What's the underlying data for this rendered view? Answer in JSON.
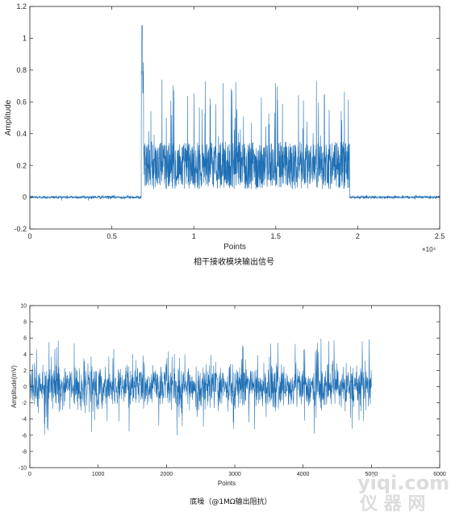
{
  "chart_data": [
    {
      "type": "line",
      "xlabel": "Points",
      "ylabel": "Amplitude",
      "x_exponent": "×10⁴",
      "caption": "相干接收模块输出信号",
      "xlim": [
        0,
        25000
      ],
      "ylim": [
        -0.2,
        1.2
      ],
      "xticks": [
        0,
        5000,
        10000,
        15000,
        20000,
        25000
      ],
      "xtick_labels": [
        "0",
        "0.5",
        "1",
        "1.5",
        "2",
        "2.5"
      ],
      "yticks": [
        -0.2,
        0,
        0.2,
        0.4,
        0.6,
        0.8,
        1,
        1.2
      ],
      "ytick_labels": [
        "-0.2",
        "0",
        "0.2",
        "0.4",
        "0.6",
        "0.8",
        "1",
        "1.2"
      ],
      "color": "#1f6fb4",
      "signal": {
        "baseline": 0.0,
        "baseline_noise": 0.01,
        "pulse_start": 6800,
        "pulse_end": 19500,
        "peak": 1.08,
        "peak_at": 6850,
        "typical_range": [
          0.05,
          0.45
        ],
        "spikes_to": 0.76
      }
    },
    {
      "type": "line",
      "xlabel": "Points",
      "ylabel": "Amplitude(mV)",
      "caption": "底噪（@1MΩ输出阻抗）",
      "xlim": [
        0,
        6000
      ],
      "ylim": [
        -10,
        10
      ],
      "xticks": [
        0,
        1000,
        2000,
        3000,
        4000,
        5000,
        6000
      ],
      "xtick_labels": [
        "0",
        "1000",
        "2000",
        "3000",
        "4000",
        "5000",
        "6000"
      ],
      "yticks": [
        -10,
        -8,
        -6,
        -4,
        -2,
        0,
        2,
        4,
        6,
        8,
        10
      ],
      "ytick_labels": [
        "-10",
        "-8",
        "-6",
        "-4",
        "-2",
        "0",
        "2",
        "4",
        "6",
        "8",
        "10"
      ],
      "color": "#1f6fb4",
      "signal": {
        "x_end": 5000,
        "mean": 0,
        "dense_range": [
          -3,
          3
        ],
        "max": 6.8,
        "min": -6
      }
    }
  ],
  "watermark": {
    "line1": "yiqi.com",
    "line2": "仪 器 网"
  }
}
